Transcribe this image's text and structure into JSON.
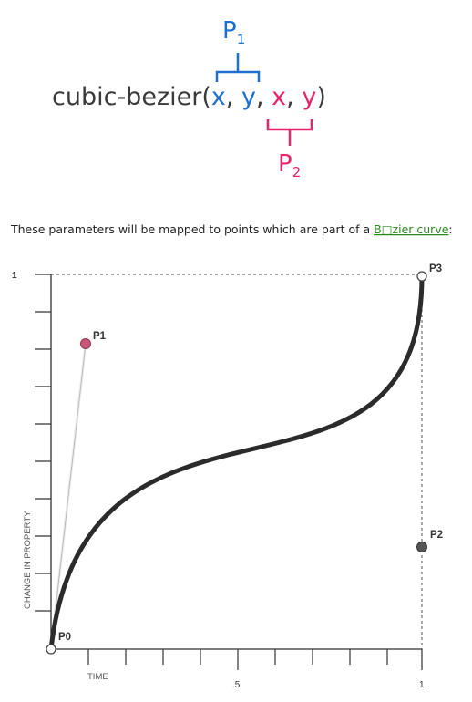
{
  "header": {
    "function_prefix": "cubic-bezier(",
    "arg_x1": "x",
    "arg_y1": "y",
    "arg_x2": "x",
    "arg_y2": "y",
    "separator": ", ",
    "closing": ")",
    "p1_label": "P",
    "p1_sub": "1",
    "p2_label": "P",
    "p2_sub": "2"
  },
  "description": {
    "text_before": "These parameters will be mapped to points which are part of a ",
    "link_text": "B□zier curve",
    "text_after": ":"
  },
  "graph": {
    "y_axis_label": "CHANGE IN PROPERTY",
    "x_axis_label": "TIME",
    "y_top_tick": "1",
    "x_mid_tick": ".5",
    "x_end_tick": "1",
    "point_labels": {
      "p0": "P0",
      "p1": "P1",
      "p2": "P2",
      "p3": "P3"
    }
  },
  "colors": {
    "p1_blue": "#1e6fd0",
    "p2_pink": "#e8246d",
    "link_green": "#2a8a1f",
    "curve": "#2b2b2b",
    "p1_point": "#c9577a",
    "p2_point": "#555555"
  }
}
